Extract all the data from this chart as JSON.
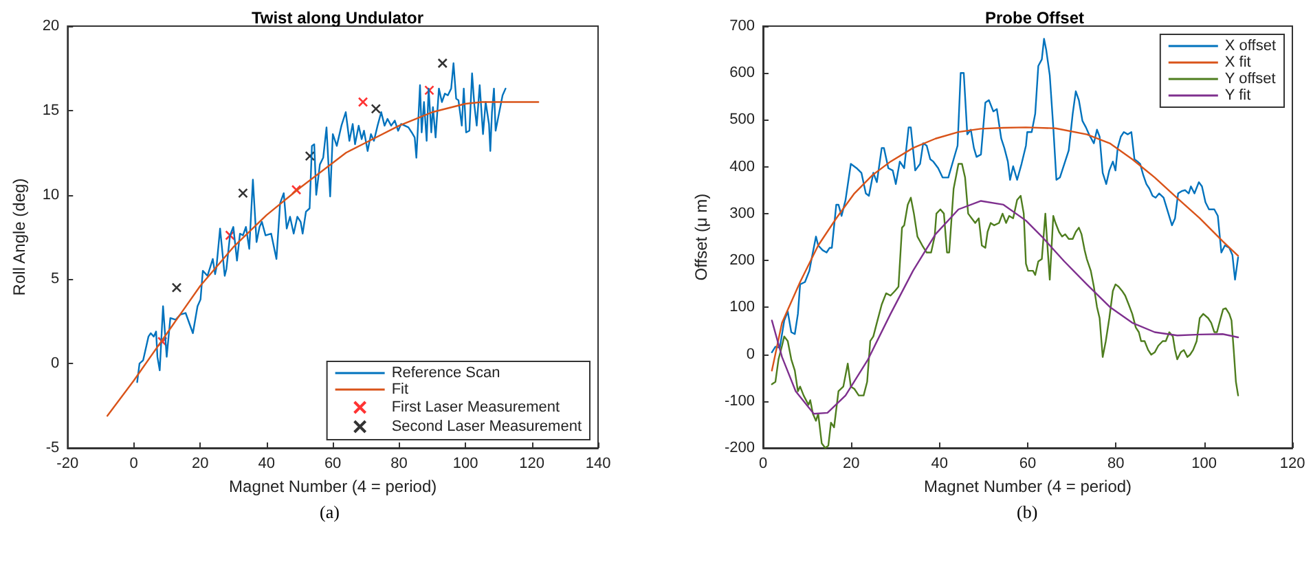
{
  "chart_data": [
    {
      "type": "line",
      "title": "Twist along Undulator",
      "xlabel": "Magnet Number (4 = period)",
      "ylabel": "Roll Angle (deg)",
      "xlim": [
        -20,
        140
      ],
      "ylim": [
        -5,
        20
      ],
      "xticks": [
        -20,
        0,
        20,
        40,
        60,
        80,
        100,
        120,
        140
      ],
      "yticks": [
        -5,
        0,
        5,
        10,
        15,
        20
      ],
      "legend": "bottom right",
      "marker": "none",
      "annotations": [
        "(a)"
      ],
      "series": [
        {
          "name": "Reference Scan",
          "color": "#0072bd",
          "x": [
            1.0,
            1.7,
            2.8,
            4.4,
            5.1,
            6.0,
            6.7,
            7.1,
            7.8,
            8.8,
            9.9,
            11.0,
            12.6,
            14.0,
            15.6,
            17.8,
            19.2,
            20.1,
            20.8,
            22.2,
            23.8,
            24.5,
            24.9,
            26.0,
            26.6,
            27.4,
            27.9,
            29.0,
            30.0,
            31.1,
            32.0,
            32.9,
            33.8,
            34.8,
            35.9,
            37.0,
            37.9,
            38.6,
            39.7,
            41.4,
            43.0,
            44.1,
            45.2,
            46.1,
            47.1,
            48.2,
            49.3,
            50.3,
            50.9,
            51.9,
            53.0,
            53.7,
            54.4,
            55.0,
            56.1,
            57.1,
            58.1,
            59.2,
            60.0,
            61.2,
            62.6,
            63.9,
            65.0,
            66.0,
            66.7,
            67.8,
            68.7,
            69.4,
            70.5,
            71.5,
            72.4,
            73.5,
            74.6,
            75.6,
            76.5,
            77.6,
            78.7,
            79.7,
            80.6,
            81.7,
            82.8,
            83.8,
            84.7,
            85.2,
            85.8,
            86.3,
            86.8,
            87.5,
            88.3,
            88.9,
            89.7,
            90.2,
            91.0,
            92.0,
            92.9,
            93.8,
            94.7,
            95.7,
            96.4,
            97.2,
            97.9,
            98.9,
            99.5,
            100.2,
            101.2,
            102.0,
            102.7,
            103.4,
            104.3,
            105.3,
            106.1,
            107.1,
            107.5,
            108.0,
            108.6,
            109.1,
            109.9,
            111.2,
            112.1
          ],
          "values": [
            -1.1,
            0.0,
            0.2,
            1.6,
            1.8,
            1.6,
            1.9,
            0.4,
            -0.4,
            3.4,
            0.4,
            2.7,
            2.6,
            2.9,
            3.0,
            1.8,
            3.4,
            3.8,
            5.5,
            5.2,
            6.2,
            5.3,
            5.7,
            8.0,
            6.8,
            5.2,
            5.6,
            7.6,
            8.1,
            6.1,
            7.7,
            7.6,
            8.1,
            6.8,
            10.9,
            7.2,
            8.1,
            8.4,
            7.6,
            7.7,
            6.2,
            9.5,
            10.1,
            8.0,
            8.7,
            7.7,
            8.7,
            8.4,
            7.7,
            9.0,
            9.2,
            12.9,
            13.0,
            10.0,
            11.8,
            12.2,
            14.0,
            9.9,
            13.6,
            12.9,
            14.1,
            14.9,
            13.2,
            14.2,
            13.0,
            14.1,
            13.3,
            13.8,
            12.6,
            13.6,
            13.2,
            14.1,
            14.9,
            14.1,
            14.5,
            14.1,
            14.4,
            13.8,
            14.2,
            14.1,
            14.0,
            13.7,
            13.4,
            12.2,
            14.5,
            16.5,
            13.7,
            15.5,
            13.2,
            16.3,
            13.7,
            15.2,
            13.4,
            16.3,
            15.5,
            16.0,
            15.9,
            16.3,
            17.8,
            15.7,
            15.6,
            14.1,
            16.3,
            13.7,
            13.8,
            17.2,
            15.3,
            14.1,
            16.5,
            13.6,
            15.5,
            14.2,
            12.6,
            14.9,
            16.3,
            13.8,
            14.6,
            15.9,
            16.3
          ]
        },
        {
          "name": "Fit",
          "color": "#d95319",
          "x": [
            -8,
            0,
            10,
            20,
            30,
            40,
            50,
            60,
            64,
            70,
            80,
            85,
            90,
            100,
            105,
            110,
            122
          ],
          "values": [
            -3.1,
            -1.0,
            1.8,
            4.6,
            6.9,
            8.8,
            10.4,
            11.9,
            12.5,
            13.1,
            14.1,
            14.5,
            14.9,
            15.4,
            15.5,
            15.5,
            15.5
          ]
        },
        {
          "name": "First Laser Measurement",
          "type": "scatter",
          "marker": "cross",
          "color": "#ff0000",
          "x": [
            8.6,
            29.0,
            49.0,
            69.1,
            89.1
          ],
          "values": [
            1.3,
            7.6,
            10.3,
            15.5,
            16.2
          ]
        },
        {
          "name": "Second Laser Measurement",
          "type": "scatter",
          "marker": "cross",
          "color": "#000000",
          "x": [
            12.9,
            32.9,
            53.1,
            73.0,
            93.1
          ],
          "values": [
            4.5,
            10.1,
            12.3,
            15.1,
            17.8
          ]
        }
      ]
    },
    {
      "type": "line",
      "title": "Probe Offset",
      "xlabel": "Magnet Number (4 = period)",
      "ylabel": "Offset (μ m)",
      "xlim": [
        0,
        120
      ],
      "ylim": [
        -200,
        700
      ],
      "xticks": [
        0,
        20,
        40,
        60,
        80,
        100,
        120
      ],
      "yticks": [
        -200,
        -100,
        0,
        100,
        200,
        300,
        400,
        500,
        600,
        700
      ],
      "legend": "top right",
      "marker": "none",
      "annotations": [
        "(b)"
      ],
      "series": [
        {
          "name": "X offset",
          "color": "#0072bd",
          "x": [
            2.0,
            2.8,
            3.8,
            4.8,
            5.6,
            6.4,
            7.2,
            7.9,
            8.4,
            9.5,
            10.5,
            11.0,
            12.0,
            12.5,
            13.5,
            14.4,
            15.1,
            15.6,
            16.6,
            17.1,
            17.8,
            18.7,
            19.9,
            21.2,
            22.3,
            23.3,
            24.0,
            25.0,
            25.8,
            26.9,
            27.4,
            28.4,
            29.4,
            30.1,
            31.0,
            32.0,
            33.0,
            33.5,
            34.5,
            35.6,
            36.3,
            37.1,
            37.9,
            38.6,
            39.7,
            40.7,
            42.0,
            43.2,
            44.1,
            44.8,
            45.5,
            46.3,
            47.1,
            47.8,
            48.4,
            49.4,
            50.4,
            51.2,
            52.2,
            53.0,
            54.0,
            54.7,
            55.5,
            56.0,
            56.7,
            57.6,
            58.6,
            59.6,
            59.9,
            60.9,
            61.7,
            62.4,
            63.2,
            63.7,
            64.2,
            65.0,
            65.8,
            66.5,
            67.3,
            68.3,
            69.3,
            70.2,
            70.9,
            71.6,
            72.4,
            73.2,
            73.9,
            75.0,
            75.7,
            76.3,
            77.0,
            77.8,
            78.5,
            79.3,
            79.9,
            80.4,
            81.1,
            81.8,
            82.7,
            83.5,
            84.2,
            84.9,
            85.5,
            86.2,
            86.9,
            87.6,
            88.3,
            89.0,
            89.8,
            90.8,
            91.9,
            92.7,
            93.4,
            94.1,
            94.9,
            95.7,
            96.5,
            97.0,
            97.8,
            98.8,
            99.5,
            100.3,
            101.1,
            102.3,
            103.1,
            103.9,
            104.7,
            105.7,
            106.4,
            107.0,
            107.7
          ],
          "values": [
            4,
            16,
            14,
            72,
            91,
            47,
            43,
            86,
            149,
            154,
            178,
            203,
            251,
            232,
            222,
            217,
            227,
            227,
            319,
            319,
            295,
            329,
            406,
            397,
            387,
            343,
            338,
            387,
            367,
            440,
            440,
            397,
            392,
            363,
            411,
            397,
            484,
            484,
            392,
            406,
            450,
            445,
            416,
            411,
            397,
            377,
            377,
            416,
            445,
            600,
            600,
            469,
            479,
            440,
            421,
            426,
            537,
            542,
            518,
            523,
            460,
            440,
            411,
            372,
            401,
            372,
            406,
            445,
            474,
            474,
            513,
            615,
            629,
            673,
            649,
            595,
            484,
            372,
            377,
            406,
            435,
            513,
            561,
            542,
            498,
            484,
            469,
            450,
            479,
            464,
            387,
            363,
            392,
            411,
            392,
            440,
            464,
            474,
            469,
            474,
            416,
            411,
            406,
            382,
            363,
            353,
            338,
            334,
            343,
            334,
            300,
            275,
            290,
            343,
            348,
            350,
            343,
            358,
            343,
            367,
            358,
            324,
            309,
            309,
            295,
            217,
            232,
            227,
            212,
            159,
            207
          ]
        },
        {
          "name": "X fit",
          "color": "#d95319",
          "x": [
            2.0,
            4.3,
            8.4,
            12.5,
            16.6,
            20.7,
            24.8,
            28.9,
            34.0,
            39.1,
            44.3,
            49.4,
            54.5,
            59.6,
            66.3,
            73.4,
            78.6,
            83.7,
            88.8,
            93.9,
            99.0,
            104.2,
            107.7
          ],
          "values": [
            -35,
            67,
            154,
            232,
            290,
            343,
            382,
            411,
            440,
            460,
            474,
            481,
            483,
            484,
            482,
            469,
            450,
            416,
            377,
            333,
            290,
            241,
            210
          ]
        },
        {
          "name": "Y offset",
          "color": "#4e7d1e",
          "x": [
            2.0,
            2.8,
            3.5,
            4.3,
            4.8,
            5.6,
            6.4,
            7.2,
            7.9,
            8.4,
            9.2,
            10.3,
            10.7,
            11.3,
            12.0,
            12.5,
            13.3,
            14.1,
            14.8,
            15.4,
            16.1,
            17.1,
            18.2,
            19.2,
            19.9,
            20.7,
            21.7,
            22.8,
            23.6,
            24.3,
            25.0,
            25.8,
            26.9,
            27.9,
            28.9,
            29.9,
            30.7,
            31.5,
            32.0,
            32.8,
            33.5,
            34.2,
            35.0,
            36.1,
            37.1,
            38.1,
            38.9,
            39.3,
            40.2,
            41.0,
            41.7,
            42.2,
            43.2,
            44.3,
            45.1,
            45.8,
            46.5,
            47.3,
            48.1,
            48.9,
            49.6,
            50.4,
            50.9,
            51.6,
            52.4,
            53.5,
            54.3,
            55.1,
            55.8,
            56.7,
            57.6,
            58.4,
            59.1,
            59.6,
            60.1,
            61.2,
            61.7,
            62.4,
            63.2,
            64.0,
            64.4,
            65.0,
            65.8,
            66.3,
            67.1,
            67.8,
            68.5,
            69.3,
            70.2,
            70.9,
            71.6,
            72.2,
            72.9,
            73.4,
            74.3,
            75.0,
            75.7,
            76.3,
            77.0,
            77.7,
            78.5,
            79.3,
            79.9,
            80.6,
            81.4,
            82.1,
            82.9,
            83.7,
            84.5,
            85.2,
            85.7,
            86.5,
            87.3,
            88.0,
            88.8,
            89.6,
            90.6,
            91.3,
            92.1,
            92.9,
            93.4,
            93.9,
            94.7,
            95.4,
            96.2,
            96.8,
            97.5,
            98.3,
            99.0,
            99.8,
            100.9,
            101.6,
            102.3,
            102.9,
            103.6,
            104.3,
            104.9,
            105.7,
            106.2,
            106.7,
            107.2,
            107.7
          ],
          "values": [
            -64,
            -59,
            -11,
            18,
            38,
            28,
            -11,
            -35,
            -79,
            -69,
            -88,
            -108,
            -98,
            -127,
            -142,
            -127,
            -190,
            -200,
            -195,
            -146,
            -156,
            -79,
            -69,
            -20,
            -69,
            -74,
            -88,
            -88,
            -59,
            28,
            38,
            67,
            106,
            130,
            125,
            135,
            144,
            270,
            275,
            319,
            334,
            300,
            251,
            232,
            217,
            217,
            251,
            300,
            309,
            300,
            217,
            217,
            353,
            406,
            406,
            377,
            300,
            290,
            280,
            290,
            232,
            227,
            261,
            280,
            275,
            280,
            300,
            280,
            295,
            290,
            329,
            338,
            300,
            193,
            178,
            178,
            169,
            198,
            203,
            300,
            241,
            159,
            295,
            280,
            261,
            251,
            256,
            246,
            246,
            261,
            270,
            256,
            222,
            203,
            178,
            144,
            101,
            77,
            -6,
            28,
            77,
            135,
            149,
            144,
            135,
            125,
            106,
            86,
            57,
            47,
            28,
            28,
            9,
            -1,
            4,
            18,
            28,
            28,
            47,
            38,
            9,
            -11,
            4,
            9,
            -6,
            -1,
            9,
            28,
            77,
            86,
            77,
            67,
            47,
            47,
            72,
            96,
            98,
            86,
            72,
            9,
            -59,
            -88
          ]
        },
        {
          "name": "Y fit",
          "color": "#7e2f8e",
          "x": [
            2.0,
            4.3,
            7.4,
            11.5,
            14.6,
            18.7,
            23.8,
            28.9,
            34.0,
            39.1,
            44.3,
            49.4,
            54.5,
            59.6,
            63.2,
            68.3,
            73.4,
            78.6,
            83.7,
            88.8,
            93.9,
            99.0,
            104.2,
            107.7
          ],
          "values": [
            72,
            -6,
            -79,
            -127,
            -125,
            -88,
            -11,
            86,
            178,
            256,
            309,
            327,
            319,
            285,
            251,
            198,
            149,
            101,
            67,
            47,
            40,
            42,
            43,
            36
          ]
        }
      ]
    }
  ]
}
